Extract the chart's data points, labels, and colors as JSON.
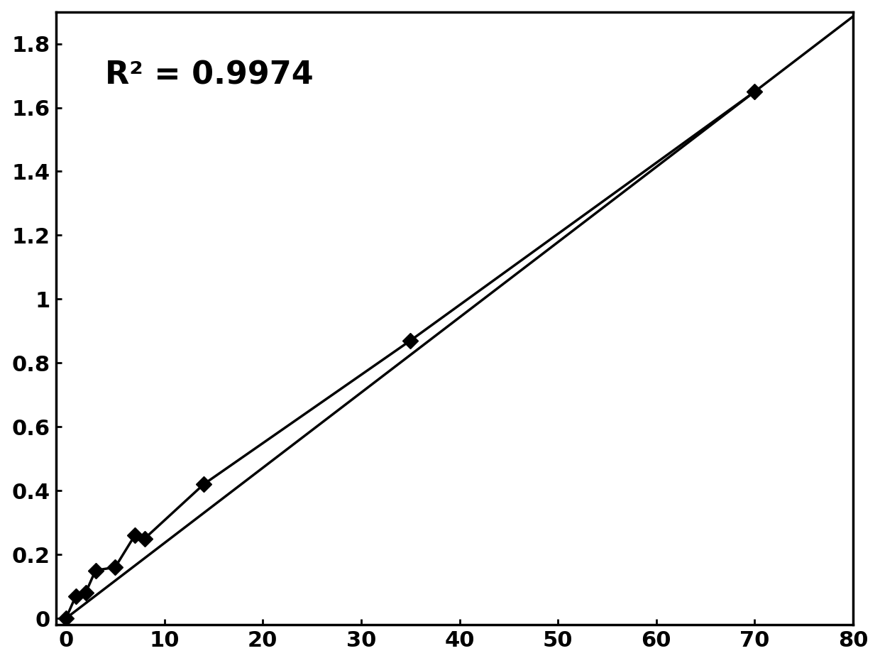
{
  "data_x": [
    0,
    1,
    2,
    3,
    5,
    7,
    8,
    14,
    35,
    70
  ],
  "data_y": [
    0.0,
    0.07,
    0.08,
    0.15,
    0.16,
    0.26,
    0.25,
    0.42,
    0.87,
    1.65
  ],
  "trend_x": [
    0,
    80
  ],
  "trend_slope": 0.02357,
  "trend_intercept": 0.0,
  "r2_text": "R² = 0.9974",
  "r2_x": 4,
  "r2_y": 1.75,
  "xlim": [
    -1,
    80
  ],
  "ylim": [
    -0.02,
    1.9
  ],
  "xticks": [
    0,
    10,
    20,
    30,
    40,
    50,
    60,
    70,
    80
  ],
  "ytick_values": [
    0,
    0.2,
    0.4,
    0.6,
    0.8,
    1.0,
    1.2,
    1.4,
    1.6,
    1.8
  ],
  "ytick_labels": [
    "0",
    "0.2",
    "0.4",
    "0.6",
    "0.8",
    "1",
    "1.2",
    "1.4",
    "1.6",
    "1.8"
  ],
  "marker_color": "#000000",
  "line_color": "#000000",
  "background_color": "#ffffff",
  "tick_fontsize": 22,
  "annotation_fontsize": 32,
  "border_linewidth": 2.5
}
